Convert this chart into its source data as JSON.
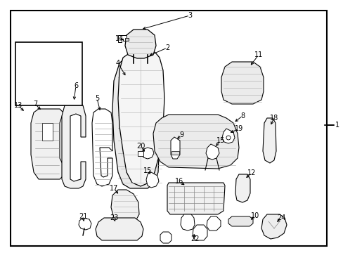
{
  "bg_color": "#ffffff",
  "border_color": "#000000",
  "line_color": "#000000",
  "text_color": "#000000",
  "fig_width": 4.89,
  "fig_height": 3.6,
  "dpi": 100,
  "lw": 0.8,
  "label_fontsize": 7.0
}
